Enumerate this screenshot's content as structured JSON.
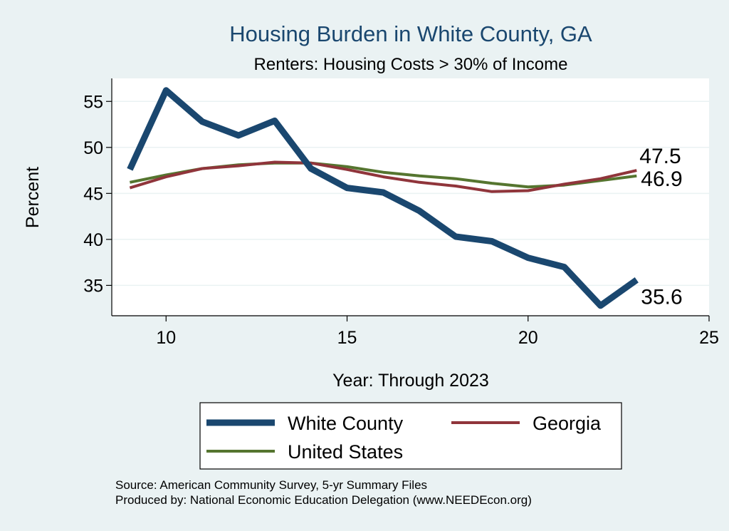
{
  "chart_data": {
    "type": "line",
    "title": "Housing Burden in White County, GA",
    "subtitle": "Renters: Housing Costs > 30% of Income",
    "xlabel": "Year: Through 2023",
    "ylabel": "Percent",
    "xlim": [
      8.5,
      25
    ],
    "ylim": [
      31.7,
      57.5
    ],
    "xticks": [
      10,
      15,
      20,
      25
    ],
    "yticks": [
      35,
      40,
      45,
      50,
      55
    ],
    "x": [
      9,
      10,
      11,
      12,
      13,
      14,
      15,
      16,
      17,
      18,
      19,
      20,
      21,
      22,
      23
    ],
    "series": [
      {
        "name": "White County",
        "color": "#1a476f",
        "values": [
          47.6,
          56.2,
          52.8,
          51.3,
          52.9,
          47.7,
          45.6,
          45.1,
          43.1,
          40.3,
          39.8,
          38.0,
          37.0,
          32.8,
          35.6
        ],
        "end_label": "35.6"
      },
      {
        "name": "Georgia",
        "color": "#90353b",
        "values": [
          45.6,
          46.8,
          47.7,
          48.0,
          48.4,
          48.3,
          47.6,
          46.8,
          46.2,
          45.8,
          45.2,
          45.3,
          46.0,
          46.6,
          47.5
        ],
        "end_label": "47.5"
      },
      {
        "name": "United States",
        "color": "#55752f",
        "values": [
          46.2,
          47.0,
          47.7,
          48.1,
          48.3,
          48.3,
          47.9,
          47.3,
          46.9,
          46.6,
          46.1,
          45.7,
          45.9,
          46.4,
          46.9
        ],
        "end_label": "46.9"
      }
    ],
    "legend_position": "bottom",
    "source_lines": [
      "Source: American Community Survey, 5-yr Summary Files",
      "Produced by: National Economic Education Delegation (www.NEEDEcon.org)"
    ]
  }
}
